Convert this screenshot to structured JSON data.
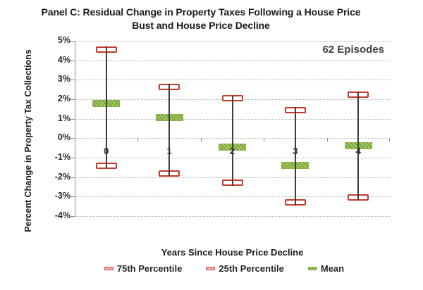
{
  "title_lines": [
    "Panel C: Residual Change in Property Taxes Following a House Price",
    "Bust and House Price Decline"
  ],
  "annotation": "62 Episodes",
  "axes": {
    "y_label": "Percent Change in Property Tax Collections",
    "x_label": "Years Since House Price Decline"
  },
  "legend": {
    "items": [
      {
        "label": "75th Percentile",
        "swatch": "red-whisker-cap"
      },
      {
        "label": "25th Percentile",
        "swatch": "red-whisker-cap"
      },
      {
        "label": "Mean",
        "swatch": "green-mean-bar"
      }
    ]
  },
  "colors": {
    "whisker_red": "#c23b2c",
    "mean_green_light": "#a6cc64",
    "mean_green_dark": "#7ca23d",
    "gridline": "#adadad",
    "axis": "#8a8a8a",
    "text": "#262626"
  },
  "chart_data": {
    "type": "scatter",
    "subtype": "percentile-whisker",
    "title": "Panel C: Residual Change in Property Taxes Following a House Price Bust and House Price Decline",
    "categories": [
      "0",
      "1",
      "2",
      "3",
      "4"
    ],
    "series": [
      {
        "name": "75th Percentile",
        "values": [
          4.55,
          2.65,
          2.05,
          1.45,
          2.25
        ]
      },
      {
        "name": "25th Percentile",
        "values": [
          -1.4,
          -1.8,
          -2.3,
          -3.3,
          -3.05
        ]
      },
      {
        "name": "Mean",
        "values": [
          1.8,
          1.05,
          -0.45,
          -1.4,
          -0.4
        ]
      }
    ],
    "xlabel": "Years Since House Price Decline",
    "ylabel": "Percent Change in Property Tax Collections",
    "ylim": [
      -4,
      5
    ],
    "y_tick_step": 1,
    "y_tick_format": "percent",
    "annotation": "62 Episodes",
    "legend_position": "bottom",
    "grid": true
  }
}
